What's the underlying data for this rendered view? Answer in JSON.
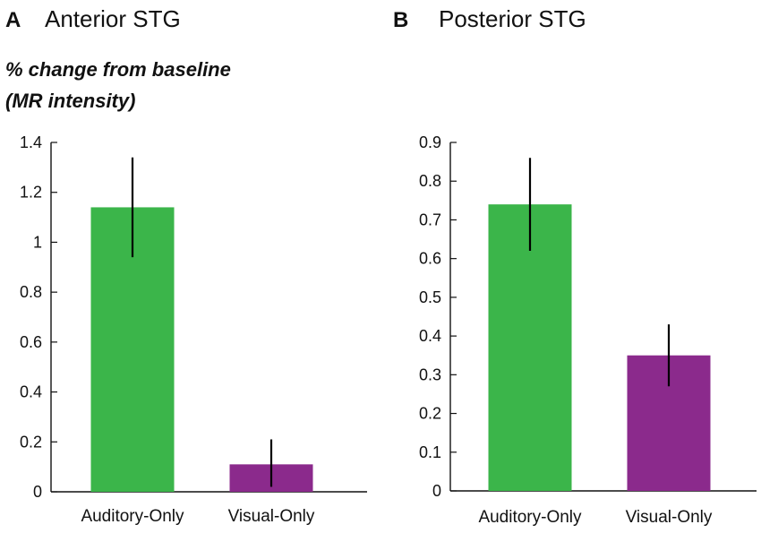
{
  "colors": {
    "auditory": "#3bb54a",
    "visual": "#8b2a8c",
    "axis": "#111111"
  },
  "ylabel_lines": [
    "% change from baseline",
    "(MR intensity)"
  ],
  "chart_data": [
    {
      "type": "bar",
      "panel": "A",
      "title": "Anterior STG",
      "ylabel": "% change from baseline (MR intensity)",
      "xlabel": "",
      "categories": [
        "Auditory-Only",
        "Visual-Only"
      ],
      "values": [
        1.14,
        0.11
      ],
      "error_low": [
        0.94,
        0.02
      ],
      "error_high": [
        1.34,
        0.21
      ],
      "ylim": [
        0,
        1.4
      ],
      "yticks": [
        0,
        0.2,
        0.4,
        0.6,
        0.8,
        1,
        1.2,
        1.4
      ],
      "ytick_labels": [
        "0",
        "0.2",
        "0.4",
        "0.6",
        "0.8",
        "1",
        "1.2",
        "1.4"
      ],
      "bar_colors": [
        "#3bb54a",
        "#8b2a8c"
      ],
      "grid": false
    },
    {
      "type": "bar",
      "panel": "B",
      "title": "Posterior STG",
      "ylabel": "",
      "xlabel": "",
      "categories": [
        "Auditory-Only",
        "Visual-Only"
      ],
      "values": [
        0.74,
        0.35
      ],
      "error_low": [
        0.62,
        0.27
      ],
      "error_high": [
        0.86,
        0.43
      ],
      "ylim": [
        0,
        0.9
      ],
      "yticks": [
        0,
        0.1,
        0.2,
        0.3,
        0.4,
        0.5,
        0.6,
        0.7,
        0.8,
        0.9
      ],
      "ytick_labels": [
        "0",
        "0.1",
        "0.2",
        "0.3",
        "0.4",
        "0.5",
        "0.6",
        "0.7",
        "0.8",
        "0.9"
      ],
      "bar_colors": [
        "#3bb54a",
        "#8b2a8c"
      ],
      "grid": false
    }
  ]
}
